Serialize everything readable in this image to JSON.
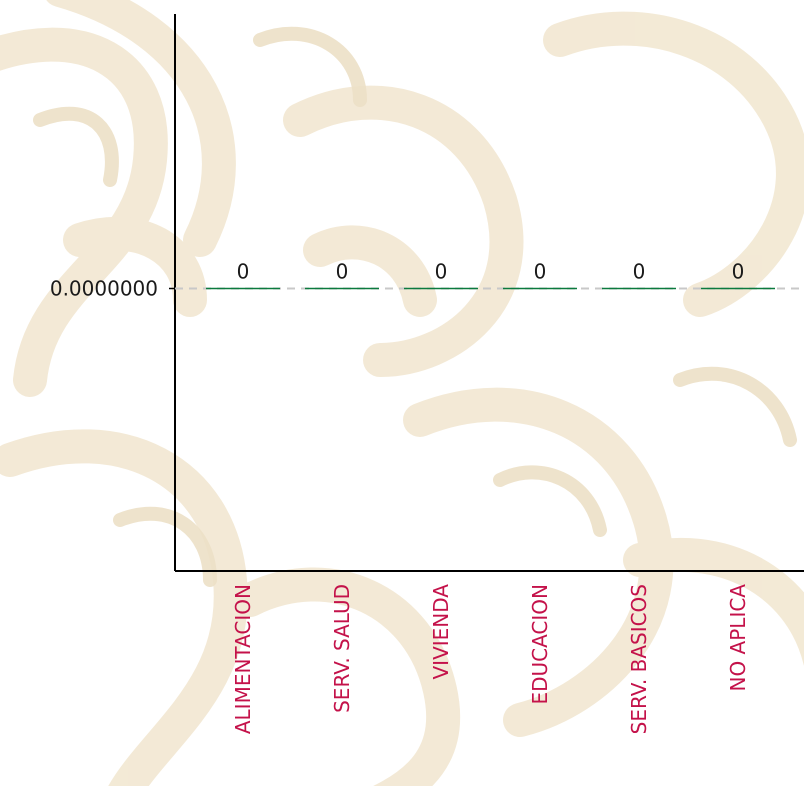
{
  "chart_data": {
    "type": "bar",
    "categories": [
      "ALIMENTACION",
      "SERV. SALUD",
      "VIVIENDA",
      "EDUCACION",
      "SERV. BASICOS",
      "NO APLICA"
    ],
    "values": [
      0,
      0,
      0,
      0,
      0,
      0
    ],
    "data_labels": [
      "0",
      "0",
      "0",
      "0",
      "0",
      "0"
    ],
    "y_tick_labels": [
      "0.0000000"
    ],
    "y_ticks": [
      0
    ],
    "ylim": [
      -1,
      1
    ],
    "title": "",
    "xlabel": "",
    "ylabel": "",
    "grid": false,
    "reference_line": {
      "y": 0,
      "style": "dashed",
      "color": "#c8c8c8"
    },
    "colors": {
      "bar": "#0b7a3e",
      "category_label": "#c4124a",
      "axis": "#000000",
      "background_pattern": "#efe2c8"
    }
  }
}
